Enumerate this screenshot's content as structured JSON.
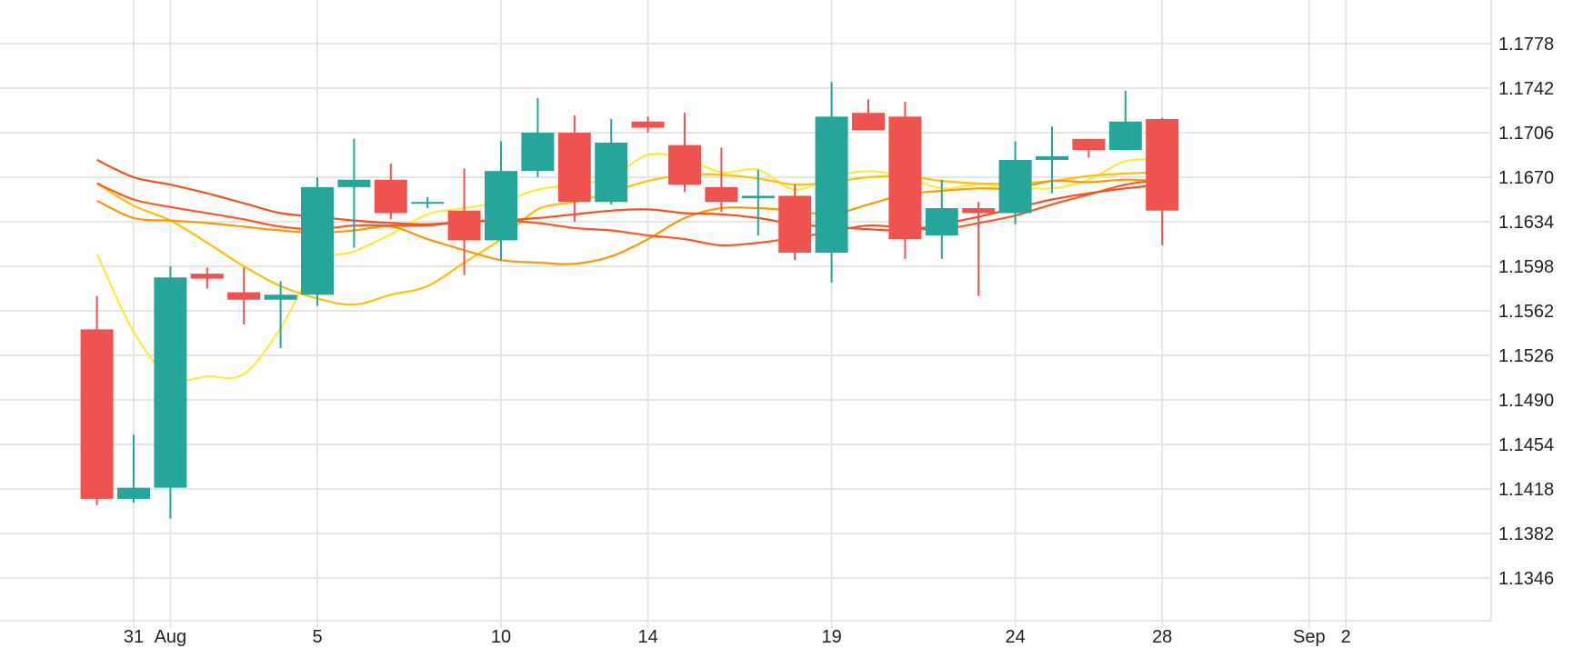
{
  "colors": {
    "up": "#26a69a",
    "down": "#ef5350",
    "grid": "#e6e6e6",
    "text": "#222222",
    "ma": [
      "#ffeb3b",
      "#ffc107",
      "#ff9800",
      "#ff5722",
      "#f4511e"
    ]
  },
  "chart_data": {
    "type": "candlestick",
    "title": "",
    "xlabel": "",
    "ylabel": "",
    "ylim": [
      1.131,
      1.1814
    ],
    "yticks": [
      "1.1778",
      "1.1742",
      "1.1706",
      "1.1670",
      "1.1634",
      "1.1598",
      "1.1562",
      "1.1526",
      "1.1490",
      "1.1454",
      "1.1418",
      "1.1382",
      "1.1346"
    ],
    "xticks": [
      {
        "label": "31",
        "date": "2020-07-31"
      },
      {
        "label": "Aug",
        "date": "2020-08-01"
      },
      {
        "label": "5",
        "date": "2020-08-05"
      },
      {
        "label": "10",
        "date": "2020-08-10"
      },
      {
        "label": "14",
        "date": "2020-08-14"
      },
      {
        "label": "19",
        "date": "2020-08-19"
      },
      {
        "label": "24",
        "date": "2020-08-24"
      },
      {
        "label": "28",
        "date": "2020-08-28"
      },
      {
        "label": "Sep",
        "date": "2020-09-01"
      },
      {
        "label": "2",
        "date": "2020-09-02"
      }
    ],
    "candles": [
      {
        "date": "2020-07-30",
        "open": 1.1547,
        "high": 1.1574,
        "low": 1.1405,
        "close": 1.141
      },
      {
        "date": "2020-07-31",
        "open": 1.141,
        "high": 1.1462,
        "low": 1.1407,
        "close": 1.1419
      },
      {
        "date": "2020-08-01",
        "open": 1.1419,
        "high": 1.1598,
        "low": 1.1394,
        "close": 1.1589
      },
      {
        "date": "2020-08-02",
        "open": 1.1592,
        "high": 1.1597,
        "low": 1.158,
        "close": 1.1588
      },
      {
        "date": "2020-08-03",
        "open": 1.1577,
        "high": 1.1597,
        "low": 1.1551,
        "close": 1.1571
      },
      {
        "date": "2020-08-04",
        "open": 1.1571,
        "high": 1.1586,
        "low": 1.1532,
        "close": 1.1575
      },
      {
        "date": "2020-08-05",
        "open": 1.1575,
        "high": 1.167,
        "low": 1.1566,
        "close": 1.1662
      },
      {
        "date": "2020-08-06",
        "open": 1.1662,
        "high": 1.1701,
        "low": 1.1613,
        "close": 1.1668
      },
      {
        "date": "2020-08-07",
        "open": 1.1668,
        "high": 1.1681,
        "low": 1.1636,
        "close": 1.1641
      },
      {
        "date": "2020-08-08",
        "open": 1.1649,
        "high": 1.1654,
        "low": 1.1645,
        "close": 1.165
      },
      {
        "date": "2020-08-09",
        "open": 1.1643,
        "high": 1.1677,
        "low": 1.1591,
        "close": 1.1619
      },
      {
        "date": "2020-08-10",
        "open": 1.1619,
        "high": 1.1699,
        "low": 1.1603,
        "close": 1.1675
      },
      {
        "date": "2020-08-11",
        "open": 1.1675,
        "high": 1.1734,
        "low": 1.167,
        "close": 1.1706
      },
      {
        "date": "2020-08-12",
        "open": 1.1706,
        "high": 1.172,
        "low": 1.1634,
        "close": 1.165
      },
      {
        "date": "2020-08-13",
        "open": 1.165,
        "high": 1.1717,
        "low": 1.1648,
        "close": 1.1698
      },
      {
        "date": "2020-08-14",
        "open": 1.1715,
        "high": 1.1719,
        "low": 1.1706,
        "close": 1.171
      },
      {
        "date": "2020-08-15",
        "open": 1.1696,
        "high": 1.1722,
        "low": 1.1658,
        "close": 1.1664
      },
      {
        "date": "2020-08-16",
        "open": 1.1662,
        "high": 1.1694,
        "low": 1.1642,
        "close": 1.165
      },
      {
        "date": "2020-08-17",
        "open": 1.1653,
        "high": 1.1676,
        "low": 1.1623,
        "close": 1.1655
      },
      {
        "date": "2020-08-18",
        "open": 1.1655,
        "high": 1.1664,
        "low": 1.1603,
        "close": 1.1609
      },
      {
        "date": "2020-08-19",
        "open": 1.1609,
        "high": 1.1747,
        "low": 1.1585,
        "close": 1.1719
      },
      {
        "date": "2020-08-20",
        "open": 1.1722,
        "high": 1.1733,
        "low": 1.1708,
        "close": 1.1708
      },
      {
        "date": "2020-08-21",
        "open": 1.1719,
        "high": 1.1731,
        "low": 1.1604,
        "close": 1.162
      },
      {
        "date": "2020-08-22",
        "open": 1.1623,
        "high": 1.1668,
        "low": 1.1604,
        "close": 1.1645
      },
      {
        "date": "2020-08-23",
        "open": 1.1645,
        "high": 1.165,
        "low": 1.1574,
        "close": 1.1641
      },
      {
        "date": "2020-08-24",
        "open": 1.1641,
        "high": 1.1699,
        "low": 1.1632,
        "close": 1.1684
      },
      {
        "date": "2020-08-25",
        "open": 1.1684,
        "high": 1.1711,
        "low": 1.1657,
        "close": 1.1687
      },
      {
        "date": "2020-08-26",
        "open": 1.1701,
        "high": 1.1701,
        "low": 1.1686,
        "close": 1.1692
      },
      {
        "date": "2020-08-27",
        "open": 1.1692,
        "high": 1.174,
        "low": 1.1692,
        "close": 1.1715
      },
      {
        "date": "2020-08-28",
        "open": 1.1717,
        "high": 1.1718,
        "low": 1.1615,
        "close": 1.1643
      }
    ],
    "moving_averages": [
      {
        "color": "#ffeb3b",
        "values": [
          1.1608,
          1.1545,
          1.1508,
          1.1509,
          1.1511,
          1.1548,
          1.16,
          1.161,
          1.1624,
          1.164,
          1.1645,
          1.165,
          1.166,
          1.1664,
          1.167,
          1.1688,
          1.1685,
          1.1674,
          1.1676,
          1.166,
          1.167,
          1.1675,
          1.167,
          1.1661,
          1.1664,
          1.1662,
          1.1661,
          1.1668,
          1.1683,
          1.1684
        ]
      },
      {
        "color": "#ffc107",
        "values": [
          1.1665,
          1.1647,
          1.1635,
          1.1617,
          1.1598,
          1.1582,
          1.1572,
          1.1567,
          1.1575,
          1.1582,
          1.1601,
          1.162,
          1.1644,
          1.165,
          1.1658,
          1.1667,
          1.1672,
          1.1672,
          1.1669,
          1.1664,
          1.1666,
          1.167,
          1.1671,
          1.1667,
          1.1665,
          1.1665,
          1.1667,
          1.1671,
          1.1673,
          1.1674
        ]
      },
      {
        "color": "#ff9800",
        "values": [
          1.1651,
          1.1637,
          1.1635,
          1.1633,
          1.163,
          1.1627,
          1.1625,
          1.1627,
          1.163,
          1.162,
          1.1611,
          1.1603,
          1.1601,
          1.16,
          1.1606,
          1.162,
          1.1637,
          1.1645,
          1.1645,
          1.1643,
          1.164,
          1.1648,
          1.1656,
          1.1659,
          1.1661,
          1.1661,
          1.1667,
          1.1666,
          1.1668,
          1.1667
        ]
      },
      {
        "color": "#ff5722",
        "values": [
          1.1665,
          1.1652,
          1.1646,
          1.1641,
          1.1636,
          1.163,
          1.1628,
          1.1631,
          1.1631,
          1.1631,
          1.1634,
          1.1635,
          1.1633,
          1.1629,
          1.1627,
          1.1623,
          1.162,
          1.1615,
          1.1617,
          1.1621,
          1.1626,
          1.1631,
          1.1629,
          1.1628,
          1.1633,
          1.1639,
          1.1648,
          1.1656,
          1.1664,
          1.1668
        ]
      },
      {
        "color": "#f4511e",
        "values": [
          1.1684,
          1.167,
          1.1664,
          1.1657,
          1.1649,
          1.1641,
          1.1638,
          1.1635,
          1.1633,
          1.1632,
          1.1634,
          1.1635,
          1.1637,
          1.164,
          1.1643,
          1.1644,
          1.1641,
          1.164,
          1.1637,
          1.1632,
          1.163,
          1.1628,
          1.1627,
          1.1632,
          1.1638,
          1.1645,
          1.1652,
          1.1657,
          1.1661,
          1.1664
        ]
      }
    ]
  }
}
